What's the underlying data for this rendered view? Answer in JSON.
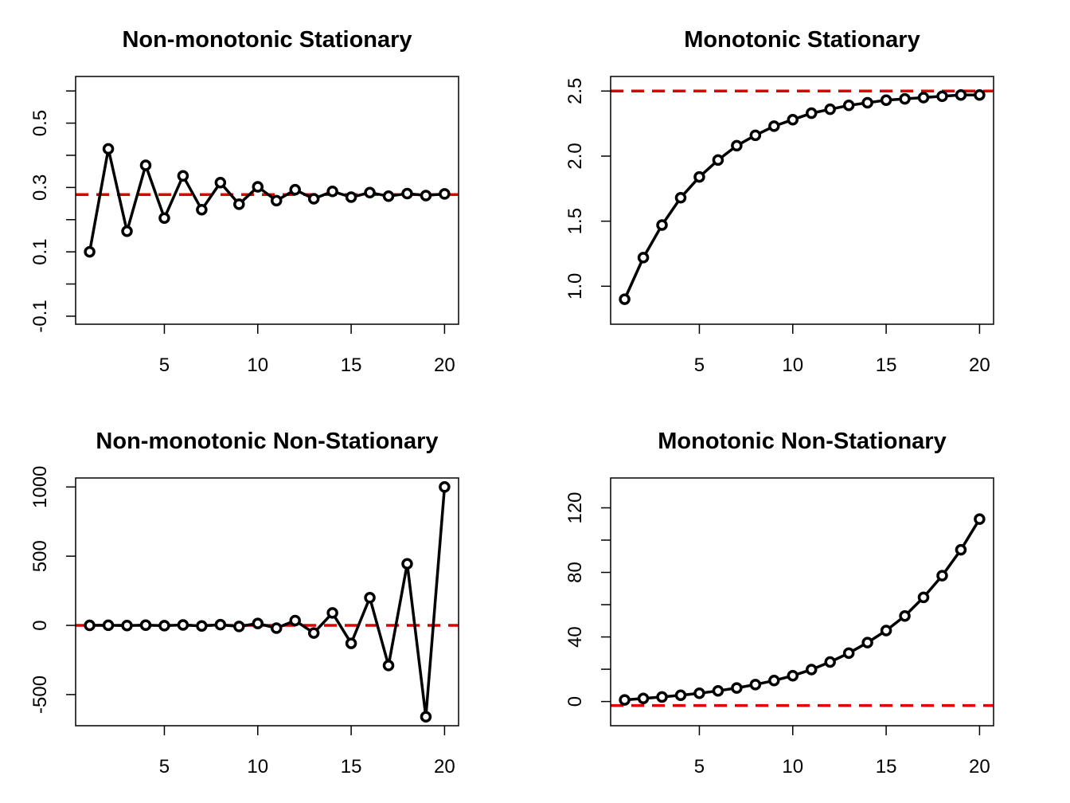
{
  "chart_data": [
    {
      "type": "line",
      "title": "Non-monotonic Stationary",
      "xlabel": "",
      "ylabel": "",
      "x": [
        1,
        2,
        3,
        4,
        5,
        6,
        7,
        8,
        9,
        10,
        11,
        12,
        13,
        14,
        15,
        16,
        17,
        18,
        19,
        20
      ],
      "values": [
        0.1,
        0.42,
        0.164,
        0.369,
        0.205,
        0.336,
        0.231,
        0.315,
        0.248,
        0.302,
        0.259,
        0.293,
        0.265,
        0.288,
        0.27,
        0.284,
        0.273,
        0.281,
        0.275,
        0.28
      ],
      "xlim": [
        0.25,
        20.75
      ],
      "ylim": [
        -0.125,
        0.645
      ],
      "xticks": [
        5,
        10,
        15,
        20
      ],
      "xtick_labels": [
        "5",
        "10",
        "15",
        "20"
      ],
      "yticks": [
        -0.1,
        0.0,
        0.1,
        0.2,
        0.3,
        0.4,
        0.5,
        0.6
      ],
      "ytick_labels": [
        "-0.1",
        "",
        "0.1",
        "",
        "0.3",
        "",
        "0.5",
        ""
      ],
      "reference_line": 0.278,
      "line_color": "#000000",
      "reference_color": "#DF0000",
      "marker": "open-circle",
      "grid": false,
      "legend": "none"
    },
    {
      "type": "line",
      "title": "Monotonic Stationary",
      "xlabel": "",
      "ylabel": "",
      "x": [
        1,
        2,
        3,
        4,
        5,
        6,
        7,
        8,
        9,
        10,
        11,
        12,
        13,
        14,
        15,
        16,
        17,
        18,
        19,
        20
      ],
      "values": [
        0.9,
        1.22,
        1.47,
        1.68,
        1.84,
        1.97,
        2.08,
        2.16,
        2.23,
        2.28,
        2.33,
        2.36,
        2.39,
        2.41,
        2.43,
        2.44,
        2.45,
        2.46,
        2.47,
        2.47
      ],
      "xlim": [
        0.25,
        20.75
      ],
      "ylim": [
        0.708,
        2.612
      ],
      "xticks": [
        5,
        10,
        15,
        20
      ],
      "xtick_labels": [
        "5",
        "10",
        "15",
        "20"
      ],
      "yticks": [
        1.0,
        1.5,
        2.0,
        2.5
      ],
      "ytick_labels": [
        "1.0",
        "1.5",
        "2.0",
        "2.5"
      ],
      "reference_line": 2.5,
      "line_color": "#000000",
      "reference_color": "#DF0000",
      "marker": "open-circle",
      "grid": false,
      "legend": "none"
    },
    {
      "type": "line",
      "title": "Non-monotonic Non-Stationary",
      "xlabel": "",
      "ylabel": "",
      "x": [
        1,
        2,
        3,
        4,
        5,
        6,
        7,
        8,
        9,
        10,
        11,
        12,
        13,
        14,
        15,
        16,
        17,
        18,
        19,
        20
      ],
      "values": [
        0,
        1,
        -1,
        2,
        -2,
        3,
        -4,
        5,
        -8,
        14,
        -20,
        35,
        -55,
        90,
        -130,
        200,
        -290,
        445,
        -660,
        1000
      ],
      "xlim": [
        0.25,
        20.75
      ],
      "ylim": [
        -725,
        1065
      ],
      "xticks": [
        5,
        10,
        15,
        20
      ],
      "xtick_labels": [
        "5",
        "10",
        "15",
        "20"
      ],
      "yticks": [
        -500,
        0,
        500,
        1000
      ],
      "ytick_labels": [
        "-500",
        "0",
        "500",
        "1000"
      ],
      "reference_line": 0,
      "line_color": "#000000",
      "reference_color": "#DF0000",
      "marker": "open-circle",
      "grid": false,
      "legend": "none"
    },
    {
      "type": "line",
      "title": "Monotonic Non-Stationary",
      "xlabel": "",
      "ylabel": "",
      "x": [
        1,
        2,
        3,
        4,
        5,
        6,
        7,
        8,
        9,
        10,
        11,
        12,
        13,
        14,
        15,
        16,
        17,
        18,
        19,
        20
      ],
      "values": [
        1.0,
        1.9,
        2.8,
        3.9,
        5.1,
        6.6,
        8.4,
        10.5,
        13.0,
        16.0,
        19.8,
        24.5,
        30.0,
        36.5,
        44.0,
        53.0,
        64.5,
        78.0,
        94.0,
        113.0
      ],
      "xlim": [
        0.25,
        20.75
      ],
      "ylim": [
        -15,
        138.5
      ],
      "xticks": [
        5,
        10,
        15,
        20
      ],
      "xtick_labels": [
        "5",
        "10",
        "15",
        "20"
      ],
      "yticks": [
        0,
        20,
        40,
        60,
        80,
        100,
        120
      ],
      "ytick_labels": [
        "0",
        "",
        "40",
        "",
        "80",
        "",
        "120"
      ],
      "reference_line": -2.5,
      "line_color": "#000000",
      "reference_color": "#DF0000",
      "marker": "open-circle",
      "grid": false,
      "legend": "none"
    }
  ]
}
